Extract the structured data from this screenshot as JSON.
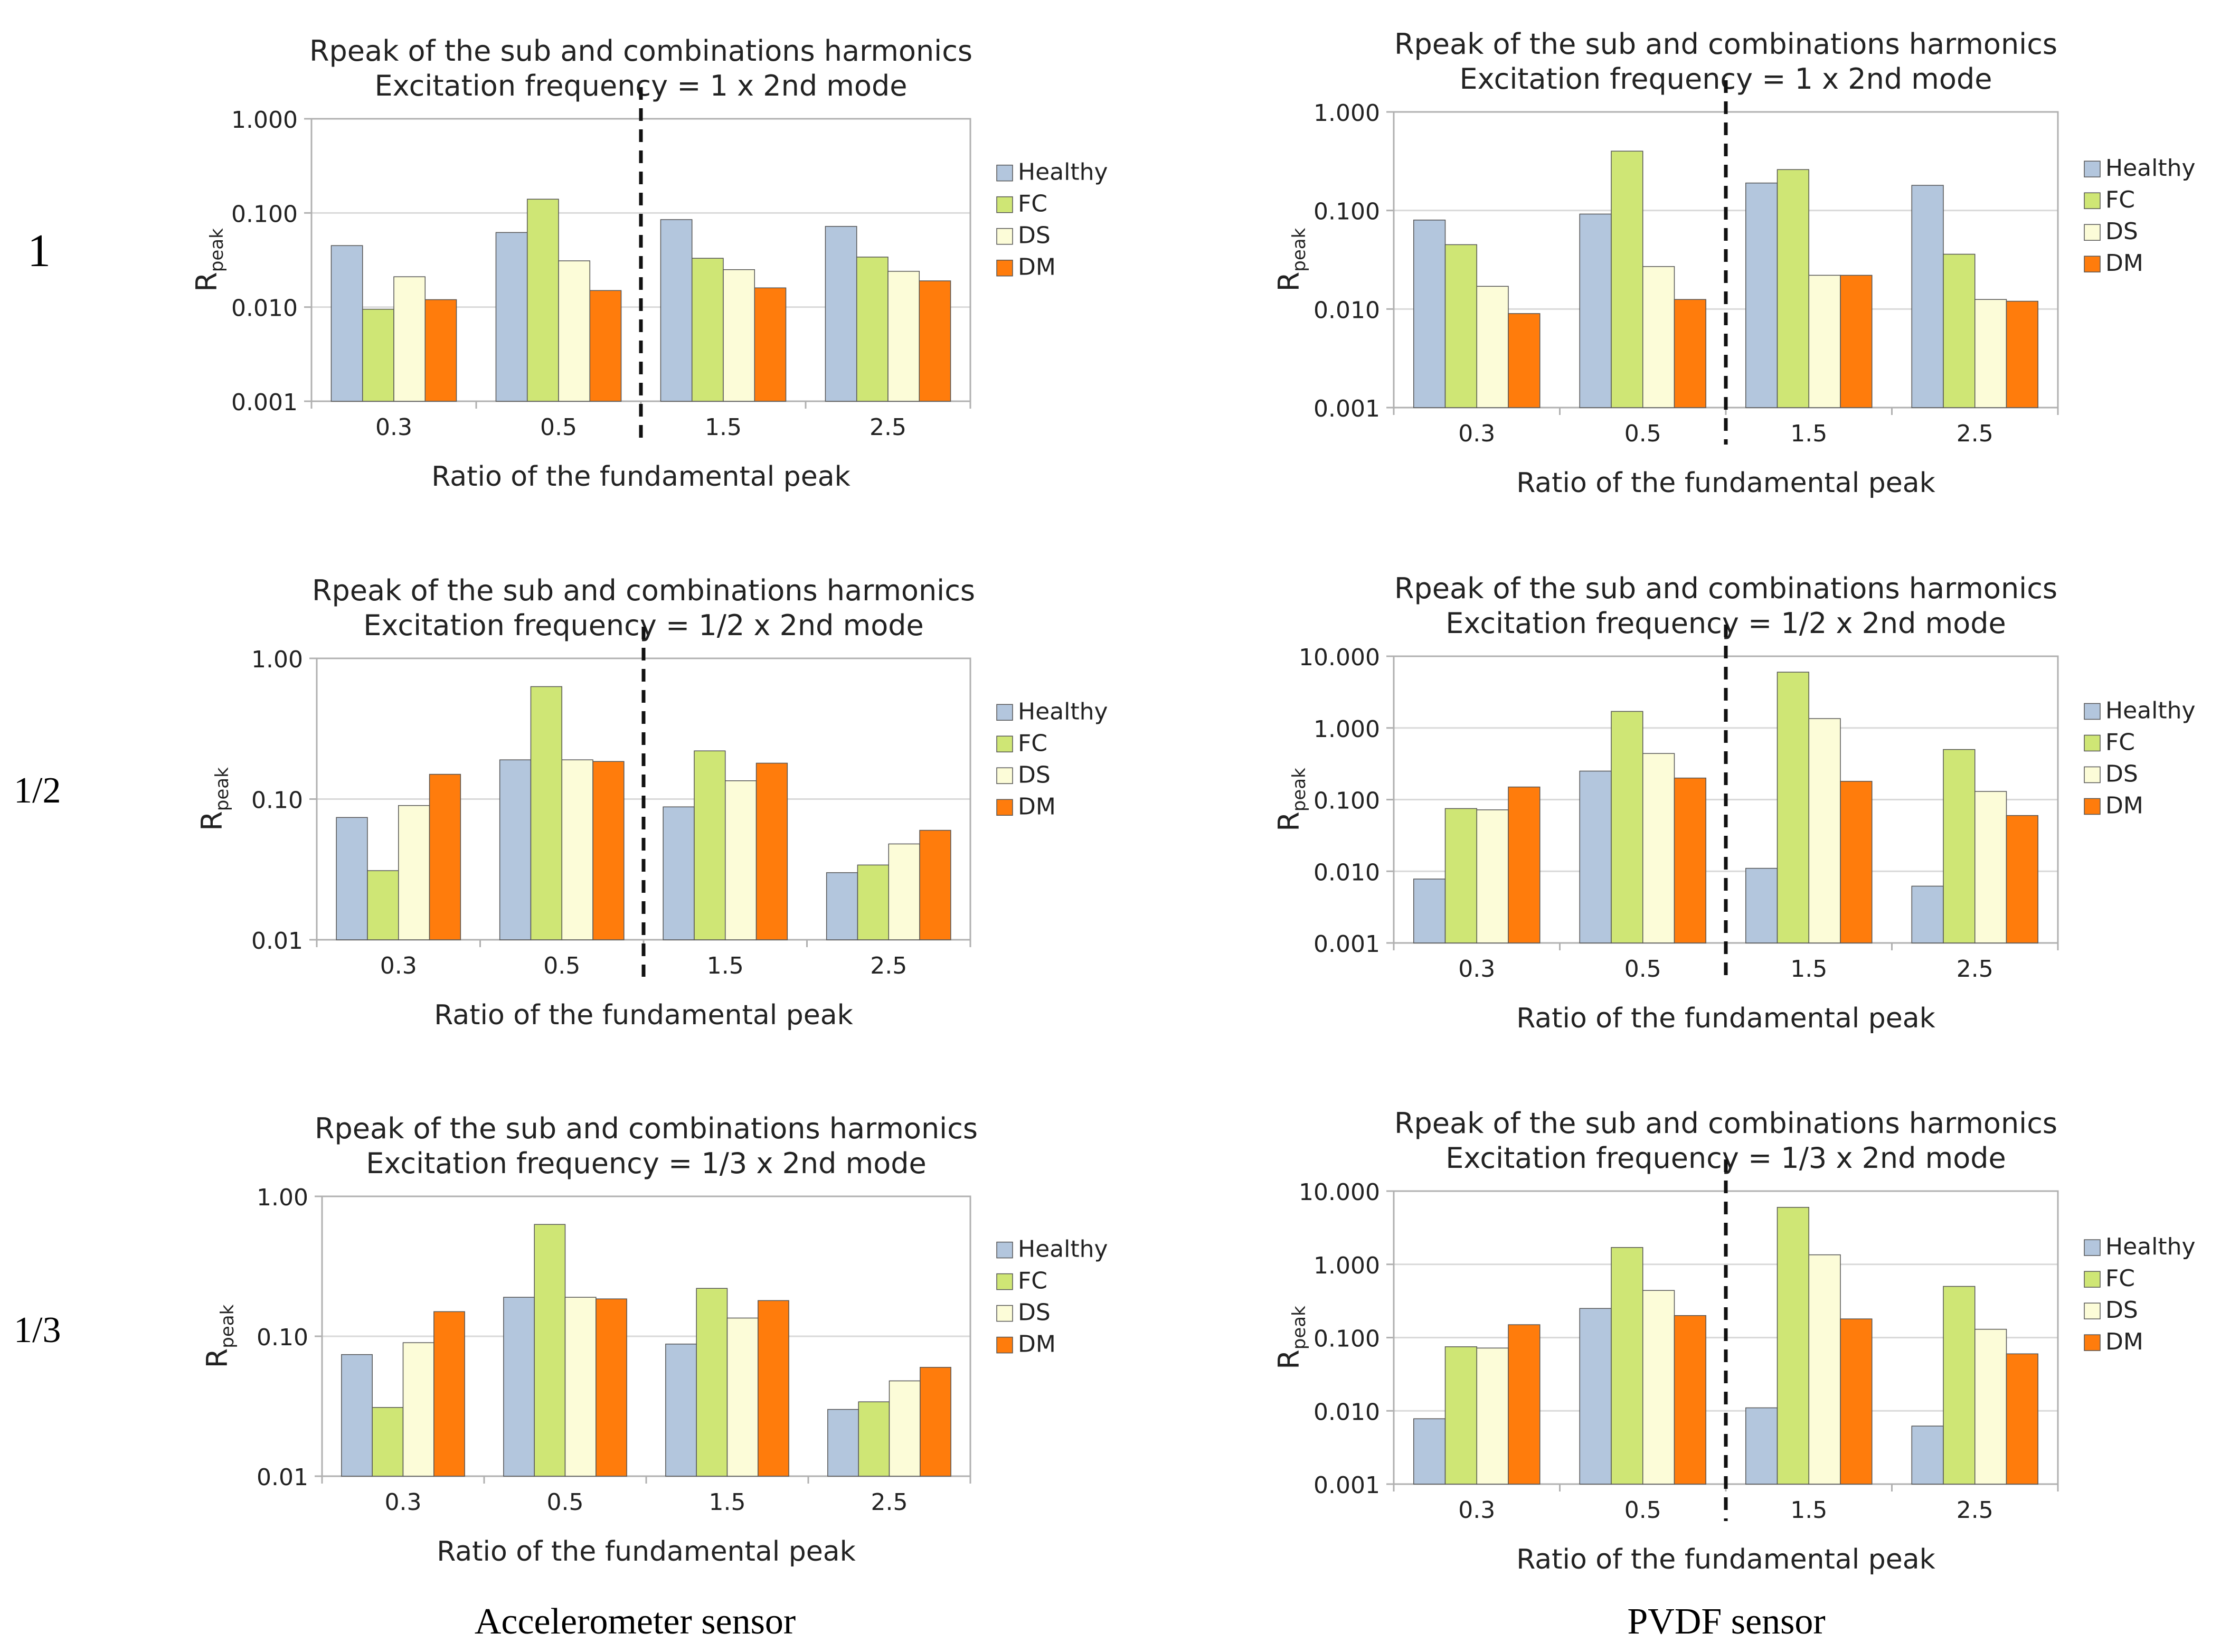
{
  "figure": {
    "row_labels": [
      "1",
      "1/2",
      "1/3"
    ],
    "column_labels": [
      "Accelerometer sensor",
      "PVDF sensor"
    ],
    "colors": {
      "Healthy": "#b3c6dd",
      "FC": "#cfe675",
      "DS": "#fcfcd8",
      "DM": "#ff7c0c",
      "grid": "#d9d9d9",
      "axis": "#b0b0b0",
      "divider": "#111111"
    }
  },
  "chart_data": [
    {
      "type": "bar",
      "scale": "log",
      "title": "Rpeak of the sub and combinations harmonics",
      "subtitle": "Excitation frequency = 1 x 2nd mode",
      "xlabel": "Ratio of the fundamental peak",
      "ylabel": "R",
      "ylabel_sub": "peak",
      "categories": [
        "0.3",
        "0.5",
        "1.5",
        "2.5"
      ],
      "ylim": [
        0.001,
        1.0
      ],
      "yticks": [
        "1.000",
        "0.100",
        "0.010",
        "0.001"
      ],
      "divider_after_category": 1,
      "legend_position": "right",
      "series": [
        {
          "name": "Healthy",
          "values": [
            0.045,
            0.062,
            0.085,
            0.072
          ]
        },
        {
          "name": "FC",
          "values": [
            0.0095,
            0.14,
            0.033,
            0.034
          ]
        },
        {
          "name": "DS",
          "values": [
            0.021,
            0.031,
            0.025,
            0.024
          ]
        },
        {
          "name": "DM",
          "values": [
            0.012,
            0.015,
            0.016,
            0.019
          ]
        }
      ]
    },
    {
      "type": "bar",
      "scale": "log",
      "title": "Rpeak of the sub and combinations harmonics",
      "subtitle": "Excitation frequency = 1 x 2nd mode",
      "xlabel": "Ratio of the fundamental peak",
      "ylabel": "R",
      "ylabel_sub": "peak",
      "categories": [
        "0.3",
        "0.5",
        "1.5",
        "2.5"
      ],
      "ylim": [
        0.001,
        1.0
      ],
      "yticks": [
        "1.000",
        "0.100",
        "0.010",
        "0.001"
      ],
      "divider_after_category": 1,
      "legend_position": "right",
      "series": [
        {
          "name": "Healthy",
          "values": [
            0.08,
            0.092,
            0.19,
            0.18
          ]
        },
        {
          "name": "FC",
          "values": [
            0.045,
            0.4,
            0.26,
            0.036
          ]
        },
        {
          "name": "DS",
          "values": [
            0.017,
            0.027,
            0.022,
            0.0125
          ]
        },
        {
          "name": "DM",
          "values": [
            0.009,
            0.0125,
            0.022,
            0.012
          ]
        }
      ]
    },
    {
      "type": "bar",
      "scale": "log",
      "title": "Rpeak of the sub and combinations harmonics",
      "subtitle": "Excitation frequency = 1/2 x 2nd mode",
      "xlabel": "Ratio of the fundamental peak",
      "ylabel": "R",
      "ylabel_sub": "peak",
      "categories": [
        "0.3",
        "0.5",
        "1.5",
        "2.5"
      ],
      "ylim": [
        0.01,
        1.0
      ],
      "yticks": [
        "1.00",
        "0.10",
        "0.01"
      ],
      "divider_after_category": 1,
      "legend_position": "right",
      "series": [
        {
          "name": "Healthy",
          "values": [
            0.074,
            0.19,
            0.088,
            0.03
          ]
        },
        {
          "name": "FC",
          "values": [
            0.031,
            0.63,
            0.22,
            0.034
          ]
        },
        {
          "name": "DS",
          "values": [
            0.09,
            0.19,
            0.135,
            0.048
          ]
        },
        {
          "name": "DM",
          "values": [
            0.15,
            0.185,
            0.18,
            0.06
          ]
        }
      ]
    },
    {
      "type": "bar",
      "scale": "log",
      "title": "Rpeak of the sub and combinations harmonics",
      "subtitle": "Excitation frequency = 1/2 x 2nd mode",
      "xlabel": "Ratio of the fundamental peak",
      "ylabel": "R",
      "ylabel_sub": "peak",
      "categories": [
        "0.3",
        "0.5",
        "1.5",
        "2.5"
      ],
      "ylim": [
        0.001,
        10.0
      ],
      "yticks": [
        "10.000",
        "1.000",
        "0.100",
        "0.010",
        "0.001"
      ],
      "divider_after_category": 1,
      "legend_position": "right",
      "series": [
        {
          "name": "Healthy",
          "values": [
            0.0078,
            0.25,
            0.011,
            0.0062
          ]
        },
        {
          "name": "FC",
          "values": [
            0.075,
            1.7,
            6.0,
            0.5
          ]
        },
        {
          "name": "DS",
          "values": [
            0.072,
            0.44,
            1.35,
            0.13
          ]
        },
        {
          "name": "DM",
          "values": [
            0.15,
            0.2,
            0.18,
            0.06
          ]
        }
      ]
    },
    {
      "type": "bar",
      "scale": "log",
      "title": "Rpeak of the sub and combinations harmonics",
      "subtitle": "Excitation frequency = 1/3 x 2nd mode",
      "xlabel": "Ratio of the fundamental peak",
      "ylabel": "R",
      "ylabel_sub": "peak",
      "categories": [
        "0.3",
        "0.5",
        "1.5",
        "2.5"
      ],
      "ylim": [
        0.01,
        1.0
      ],
      "yticks": [
        "1.00",
        "0.10",
        "0.01"
      ],
      "divider_after_category": null,
      "legend_position": "right",
      "series": [
        {
          "name": "Healthy",
          "values": [
            0.074,
            0.19,
            0.088,
            0.03
          ]
        },
        {
          "name": "FC",
          "values": [
            0.031,
            0.63,
            0.22,
            0.034
          ]
        },
        {
          "name": "DS",
          "values": [
            0.09,
            0.19,
            0.135,
            0.048
          ]
        },
        {
          "name": "DM",
          "values": [
            0.15,
            0.185,
            0.18,
            0.06
          ]
        }
      ]
    },
    {
      "type": "bar",
      "scale": "log",
      "title": "Rpeak of the sub and combinations harmonics",
      "subtitle": "Excitation frequency = 1/3 x 2nd mode",
      "xlabel": "Ratio of the fundamental peak",
      "ylabel": "R",
      "ylabel_sub": "peak",
      "categories": [
        "0.3",
        "0.5",
        "1.5",
        "2.5"
      ],
      "ylim": [
        0.001,
        10.0
      ],
      "yticks": [
        "10.000",
        "1.000",
        "0.100",
        "0.010",
        "0.001"
      ],
      "divider_after_category": 1,
      "legend_position": "right",
      "series": [
        {
          "name": "Healthy",
          "values": [
            0.0078,
            0.25,
            0.011,
            0.0062
          ]
        },
        {
          "name": "FC",
          "values": [
            0.075,
            1.7,
            6.0,
            0.5
          ]
        },
        {
          "name": "DS",
          "values": [
            0.072,
            0.44,
            1.35,
            0.13
          ]
        },
        {
          "name": "DM",
          "values": [
            0.15,
            0.2,
            0.18,
            0.06
          ]
        }
      ]
    }
  ]
}
